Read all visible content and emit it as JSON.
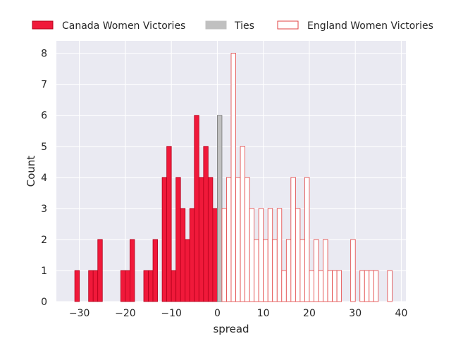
{
  "chart_data": {
    "type": "bar",
    "xlabel": "spread",
    "ylabel": "Count",
    "xlim": [
      -35,
      41
    ],
    "ylim": [
      0,
      8.4
    ],
    "xticks": [
      -30,
      -20,
      -10,
      0,
      10,
      20,
      30,
      40
    ],
    "yticks": [
      0,
      1,
      2,
      3,
      4,
      5,
      6,
      7,
      8
    ],
    "grid": true,
    "legend_position": "top, above plot",
    "colors": {
      "canada": "#f0193a",
      "canada_edge": "#b3001b",
      "ties": "#c0c0c0",
      "ties_edge": "#777777",
      "england_edge": "#e14040",
      "background": "#eaeaf2",
      "grid": "#ffffff"
    },
    "series": [
      {
        "name": "Canada Women Victories",
        "style": "filled",
        "bins": [
          {
            "x": -31,
            "count": 1
          },
          {
            "x": -28,
            "count": 1
          },
          {
            "x": -27,
            "count": 1
          },
          {
            "x": -26,
            "count": 2
          },
          {
            "x": -21,
            "count": 1
          },
          {
            "x": -20,
            "count": 1
          },
          {
            "x": -19,
            "count": 2
          },
          {
            "x": -16,
            "count": 1
          },
          {
            "x": -15,
            "count": 1
          },
          {
            "x": -14,
            "count": 2
          },
          {
            "x": -12,
            "count": 4
          },
          {
            "x": -11,
            "count": 5
          },
          {
            "x": -10,
            "count": 1
          },
          {
            "x": -9,
            "count": 4
          },
          {
            "x": -8,
            "count": 3
          },
          {
            "x": -7,
            "count": 2
          },
          {
            "x": -6,
            "count": 3
          },
          {
            "x": -5,
            "count": 6
          },
          {
            "x": -4,
            "count": 4
          },
          {
            "x": -3,
            "count": 5
          },
          {
            "x": -2,
            "count": 4
          },
          {
            "x": -1,
            "count": 3
          }
        ]
      },
      {
        "name": "Ties",
        "style": "filled",
        "bins": [
          {
            "x": 0,
            "count": 6
          }
        ]
      },
      {
        "name": "England Women Victories",
        "style": "outline",
        "bins": [
          {
            "x": 1,
            "count": 3
          },
          {
            "x": 2,
            "count": 4
          },
          {
            "x": 3,
            "count": 8
          },
          {
            "x": 4,
            "count": 4
          },
          {
            "x": 5,
            "count": 5
          },
          {
            "x": 6,
            "count": 4
          },
          {
            "x": 7,
            "count": 3
          },
          {
            "x": 8,
            "count": 2
          },
          {
            "x": 9,
            "count": 3
          },
          {
            "x": 10,
            "count": 2
          },
          {
            "x": 11,
            "count": 3
          },
          {
            "x": 12,
            "count": 2
          },
          {
            "x": 13,
            "count": 3
          },
          {
            "x": 14,
            "count": 1
          },
          {
            "x": 15,
            "count": 2
          },
          {
            "x": 16,
            "count": 4
          },
          {
            "x": 17,
            "count": 3
          },
          {
            "x": 18,
            "count": 2
          },
          {
            "x": 19,
            "count": 4
          },
          {
            "x": 20,
            "count": 1
          },
          {
            "x": 21,
            "count": 2
          },
          {
            "x": 22,
            "count": 1
          },
          {
            "x": 23,
            "count": 2
          },
          {
            "x": 24,
            "count": 1
          },
          {
            "x": 25,
            "count": 1
          },
          {
            "x": 26,
            "count": 1
          },
          {
            "x": 29,
            "count": 2
          },
          {
            "x": 31,
            "count": 1
          },
          {
            "x": 32,
            "count": 1
          },
          {
            "x": 33,
            "count": 1
          },
          {
            "x": 34,
            "count": 1
          },
          {
            "x": 37,
            "count": 1
          }
        ]
      }
    ]
  }
}
